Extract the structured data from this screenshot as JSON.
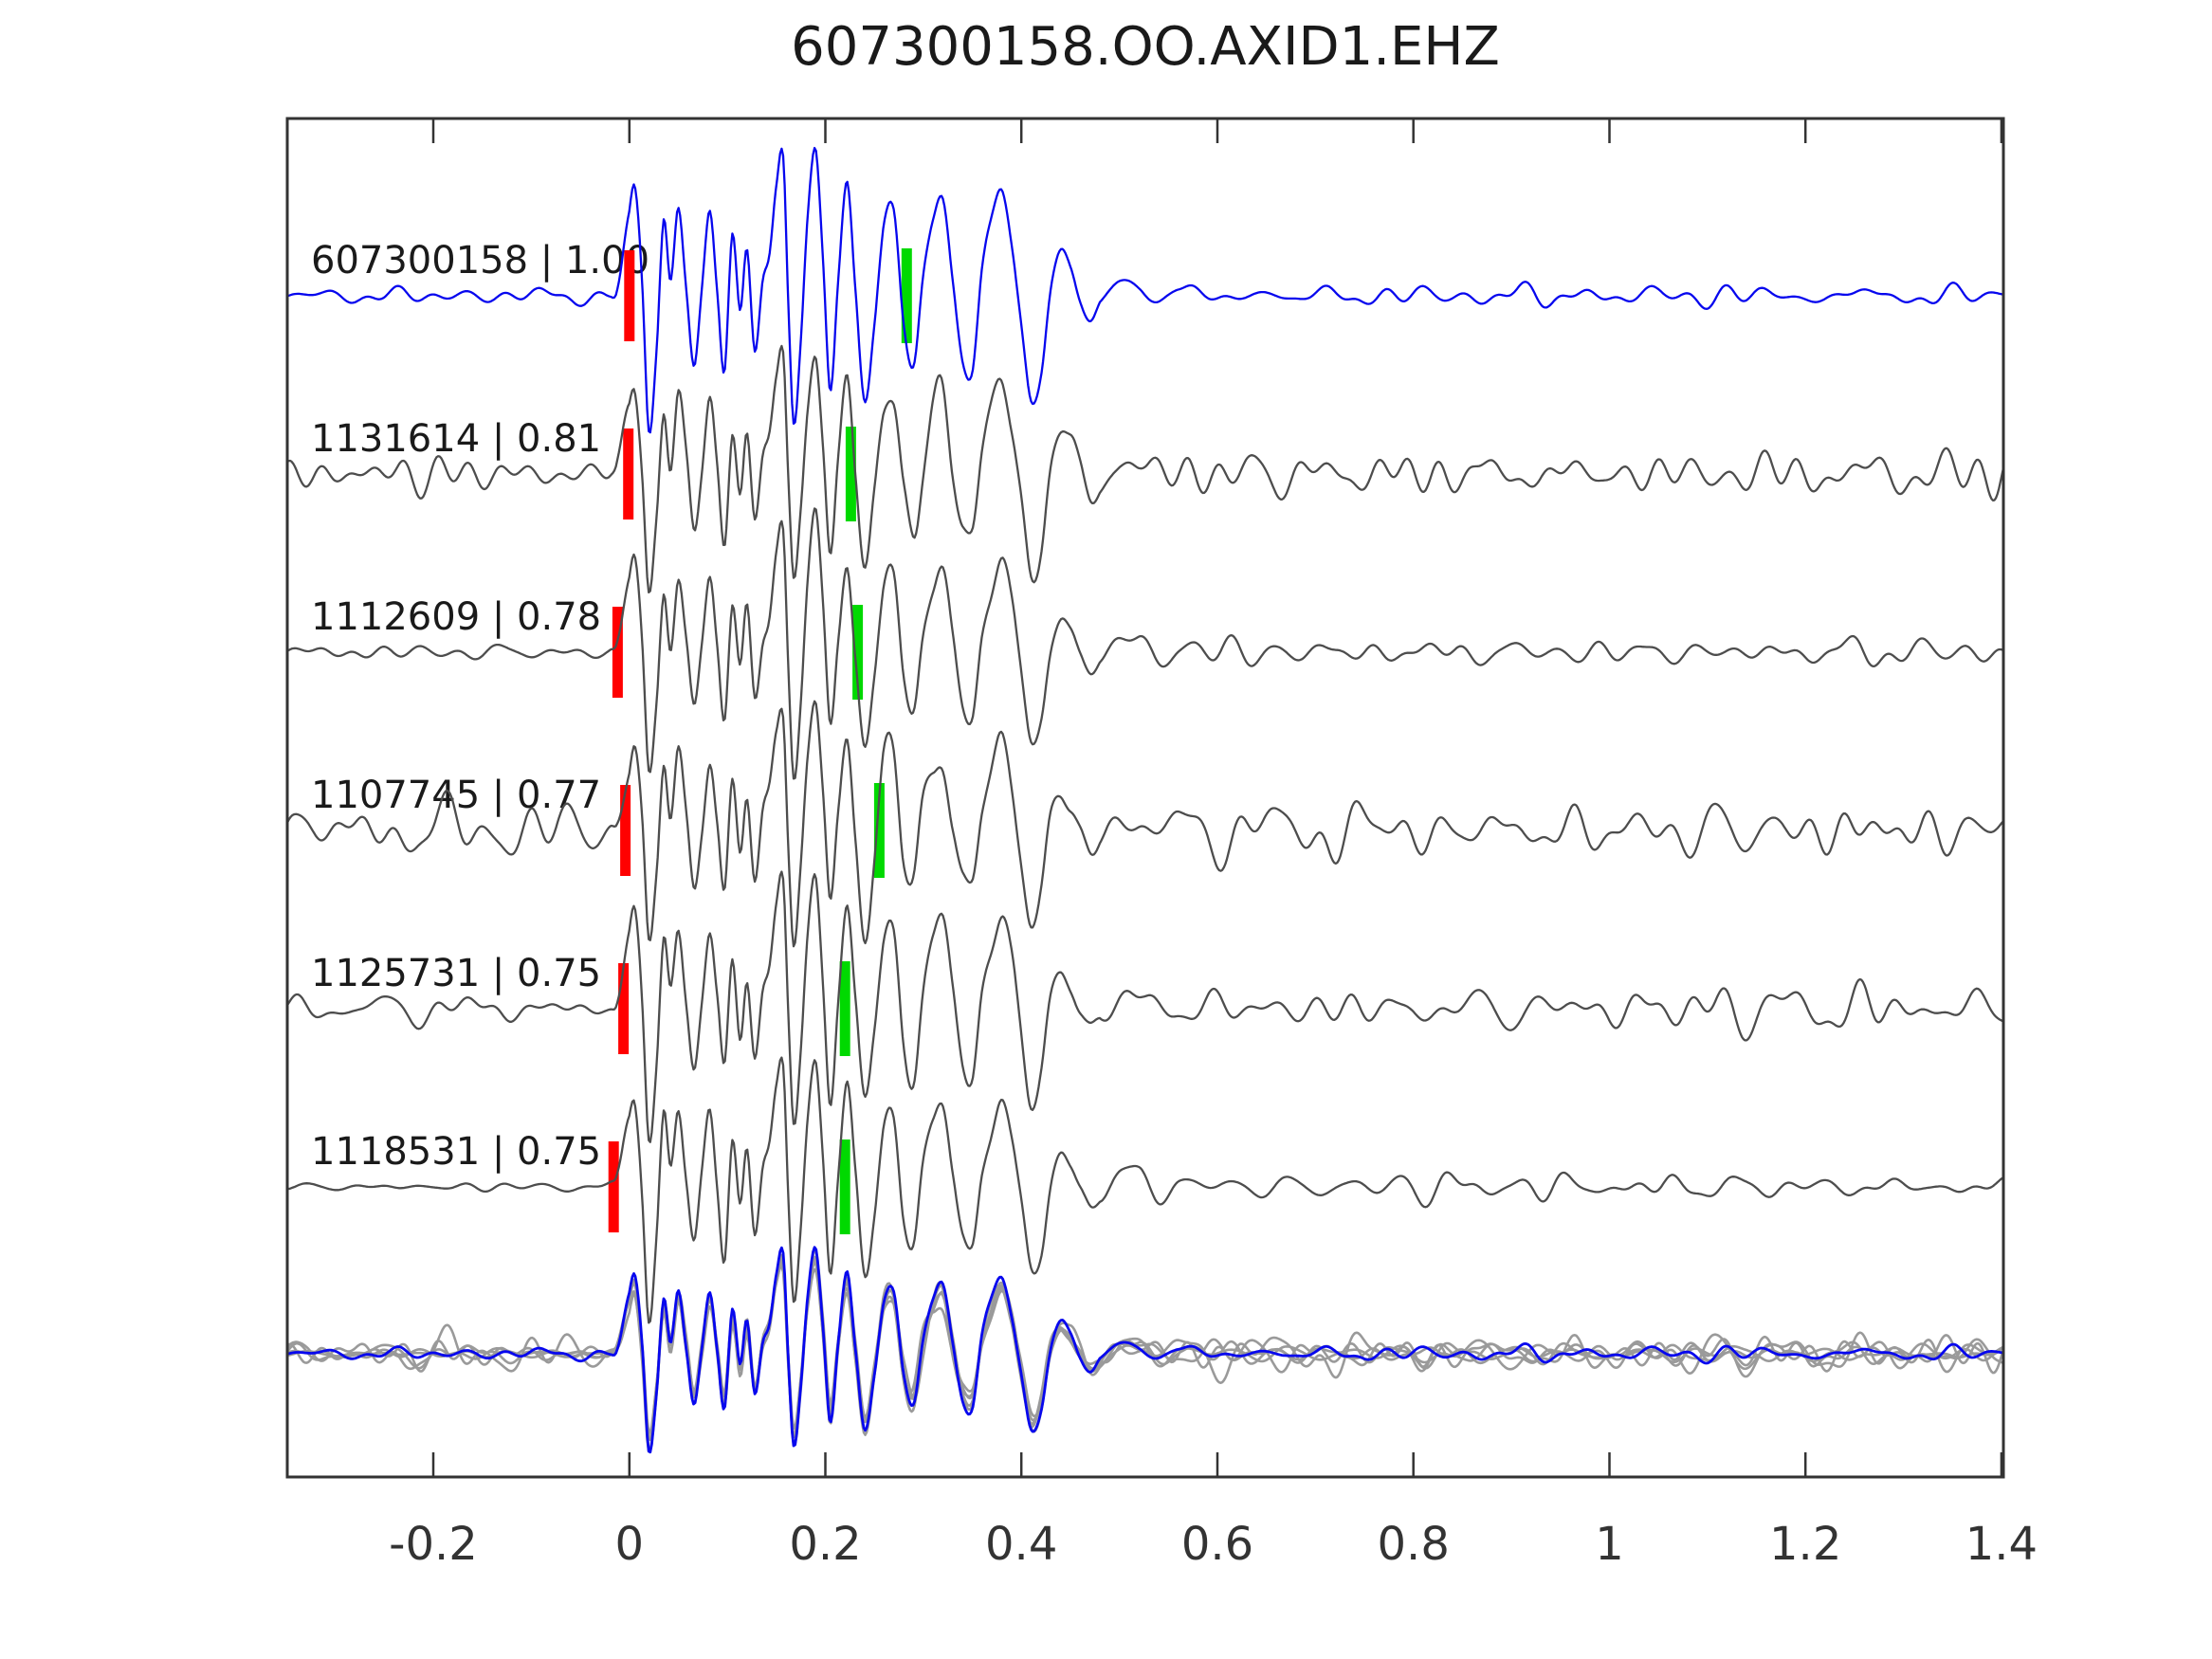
{
  "title": "607300158.OO.AXID1.EHZ",
  "colors": {
    "template_trace": "#0707ee",
    "candidate_trace": "#4d4d4d",
    "overlay_gray": "#9a9a9a",
    "pick_red": "#ff0000",
    "pick_green": "#00d900",
    "axis": "#333333",
    "label_text": "#1a1a1a",
    "tick_text": "#333333"
  },
  "chart_data": {
    "type": "line",
    "title": "607300158.OO.AXID1.EHZ",
    "xlabel": "",
    "ylabel": "",
    "grid": false,
    "x_range": [
      -0.349,
      1.402
    ],
    "x_ticks": [
      -0.2,
      0,
      0.2,
      0.4,
      0.6,
      0.8,
      1,
      1.2,
      1.4
    ],
    "x_tick_labels": [
      "-0.2",
      "0",
      "0.2",
      "0.4",
      "0.6",
      "0.8",
      "1",
      "1.2",
      "1.4"
    ],
    "traces": [
      {
        "id": "607300158",
        "correlation": 1.0,
        "label": "607300158 | 1.00",
        "role": "template",
        "red_pick": 0.0,
        "green_pick": 0.283,
        "pre_noise_rms": 2.5,
        "mid_noise_rms": 0,
        "tail_noise_rms": 4.0,
        "seed": 101,
        "amp": 155
      },
      {
        "id": "1131614",
        "correlation": 0.81,
        "label": "1131614 | 0.81",
        "role": "candidate",
        "red_pick": -0.001,
        "green_pick": 0.226,
        "pre_noise_rms": 6.0,
        "mid_noise_rms": 5,
        "tail_noise_rms": 7.0,
        "seed": 102,
        "amp": 135
      },
      {
        "id": "1112609",
        "correlation": 0.78,
        "label": "1112609 | 0.78",
        "role": "candidate",
        "red_pick": -0.012,
        "green_pick": 0.233,
        "pre_noise_rms": 3.0,
        "mid_noise_rms": 5,
        "tail_noise_rms": 4.5,
        "seed": 103,
        "amp": 135
      },
      {
        "id": "1107745",
        "correlation": 0.77,
        "label": "1107745 | 0.77",
        "role": "candidate",
        "red_pick": -0.004,
        "green_pick": 0.255,
        "pre_noise_rms": 8.0,
        "mid_noise_rms": 6,
        "tail_noise_rms": 9.0,
        "seed": 104,
        "amp": 135
      },
      {
        "id": "1125731",
        "correlation": 0.75,
        "label": "1125731 | 0.75",
        "role": "candidate",
        "red_pick": -0.006,
        "green_pick": 0.22,
        "pre_noise_rms": 5.5,
        "mid_noise_rms": 5,
        "tail_noise_rms": 7.0,
        "seed": 105,
        "amp": 135
      },
      {
        "id": "1118531",
        "correlation": 0.75,
        "label": "1118531 | 0.75",
        "role": "candidate",
        "red_pick": -0.016,
        "green_pick": 0.22,
        "pre_noise_rms": 1.5,
        "mid_noise_rms": 5,
        "tail_noise_rms": 4.5,
        "seed": 106,
        "amp": 135
      }
    ],
    "overlay": {
      "description": "all candidate traces superimposed in gray with template trace in blue on top",
      "scale": 0.72
    },
    "master_waveform": [
      [
        -0.02,
        0.0
      ],
      [
        -0.012,
        0.05
      ],
      [
        0.0,
        0.55
      ],
      [
        0.006,
        0.72
      ],
      [
        0.013,
        0.1
      ],
      [
        0.02,
        -0.93
      ],
      [
        0.028,
        -0.35
      ],
      [
        0.035,
        0.52
      ],
      [
        0.042,
        0.1
      ],
      [
        0.05,
        0.6
      ],
      [
        0.058,
        0.05
      ],
      [
        0.066,
        -0.48
      ],
      [
        0.074,
        0.05
      ],
      [
        0.082,
        0.58
      ],
      [
        0.09,
        0.0
      ],
      [
        0.097,
        -0.52
      ],
      [
        0.105,
        0.42
      ],
      [
        0.113,
        -0.1
      ],
      [
        0.12,
        0.32
      ],
      [
        0.128,
        -0.38
      ],
      [
        0.136,
        0.1
      ],
      [
        0.143,
        0.28
      ],
      [
        0.15,
        0.75
      ],
      [
        0.157,
        0.95
      ],
      [
        0.163,
        -0.2
      ],
      [
        0.168,
        -0.88
      ],
      [
        0.175,
        -0.3
      ],
      [
        0.182,
        0.55
      ],
      [
        0.19,
        1.0
      ],
      [
        0.198,
        0.2
      ],
      [
        0.205,
        -0.65
      ],
      [
        0.213,
        0.1
      ],
      [
        0.222,
        0.78
      ],
      [
        0.23,
        0.1
      ],
      [
        0.24,
        -0.72
      ],
      [
        0.25,
        -0.2
      ],
      [
        0.26,
        0.5
      ],
      [
        0.27,
        0.58
      ],
      [
        0.28,
        -0.2
      ],
      [
        0.29,
        -0.48
      ],
      [
        0.3,
        0.15
      ],
      [
        0.31,
        0.52
      ],
      [
        0.32,
        0.66
      ],
      [
        0.33,
        0.1
      ],
      [
        0.34,
        -0.45
      ],
      [
        0.35,
        -0.52
      ],
      [
        0.36,
        0.2
      ],
      [
        0.37,
        0.55
      ],
      [
        0.38,
        0.72
      ],
      [
        0.39,
        0.35
      ],
      [
        0.4,
        -0.2
      ],
      [
        0.41,
        -0.72
      ],
      [
        0.42,
        -0.55
      ],
      [
        0.43,
        0.05
      ],
      [
        0.44,
        0.32
      ],
      [
        0.45,
        0.2
      ],
      [
        0.46,
        -0.05
      ],
      [
        0.47,
        -0.18
      ],
      [
        0.48,
        -0.05
      ],
      [
        0.5,
        0.1
      ],
      [
        0.52,
        0.08
      ],
      [
        0.54,
        -0.06
      ],
      [
        0.56,
        0.04
      ],
      [
        0.6,
        0.0
      ]
    ]
  }
}
